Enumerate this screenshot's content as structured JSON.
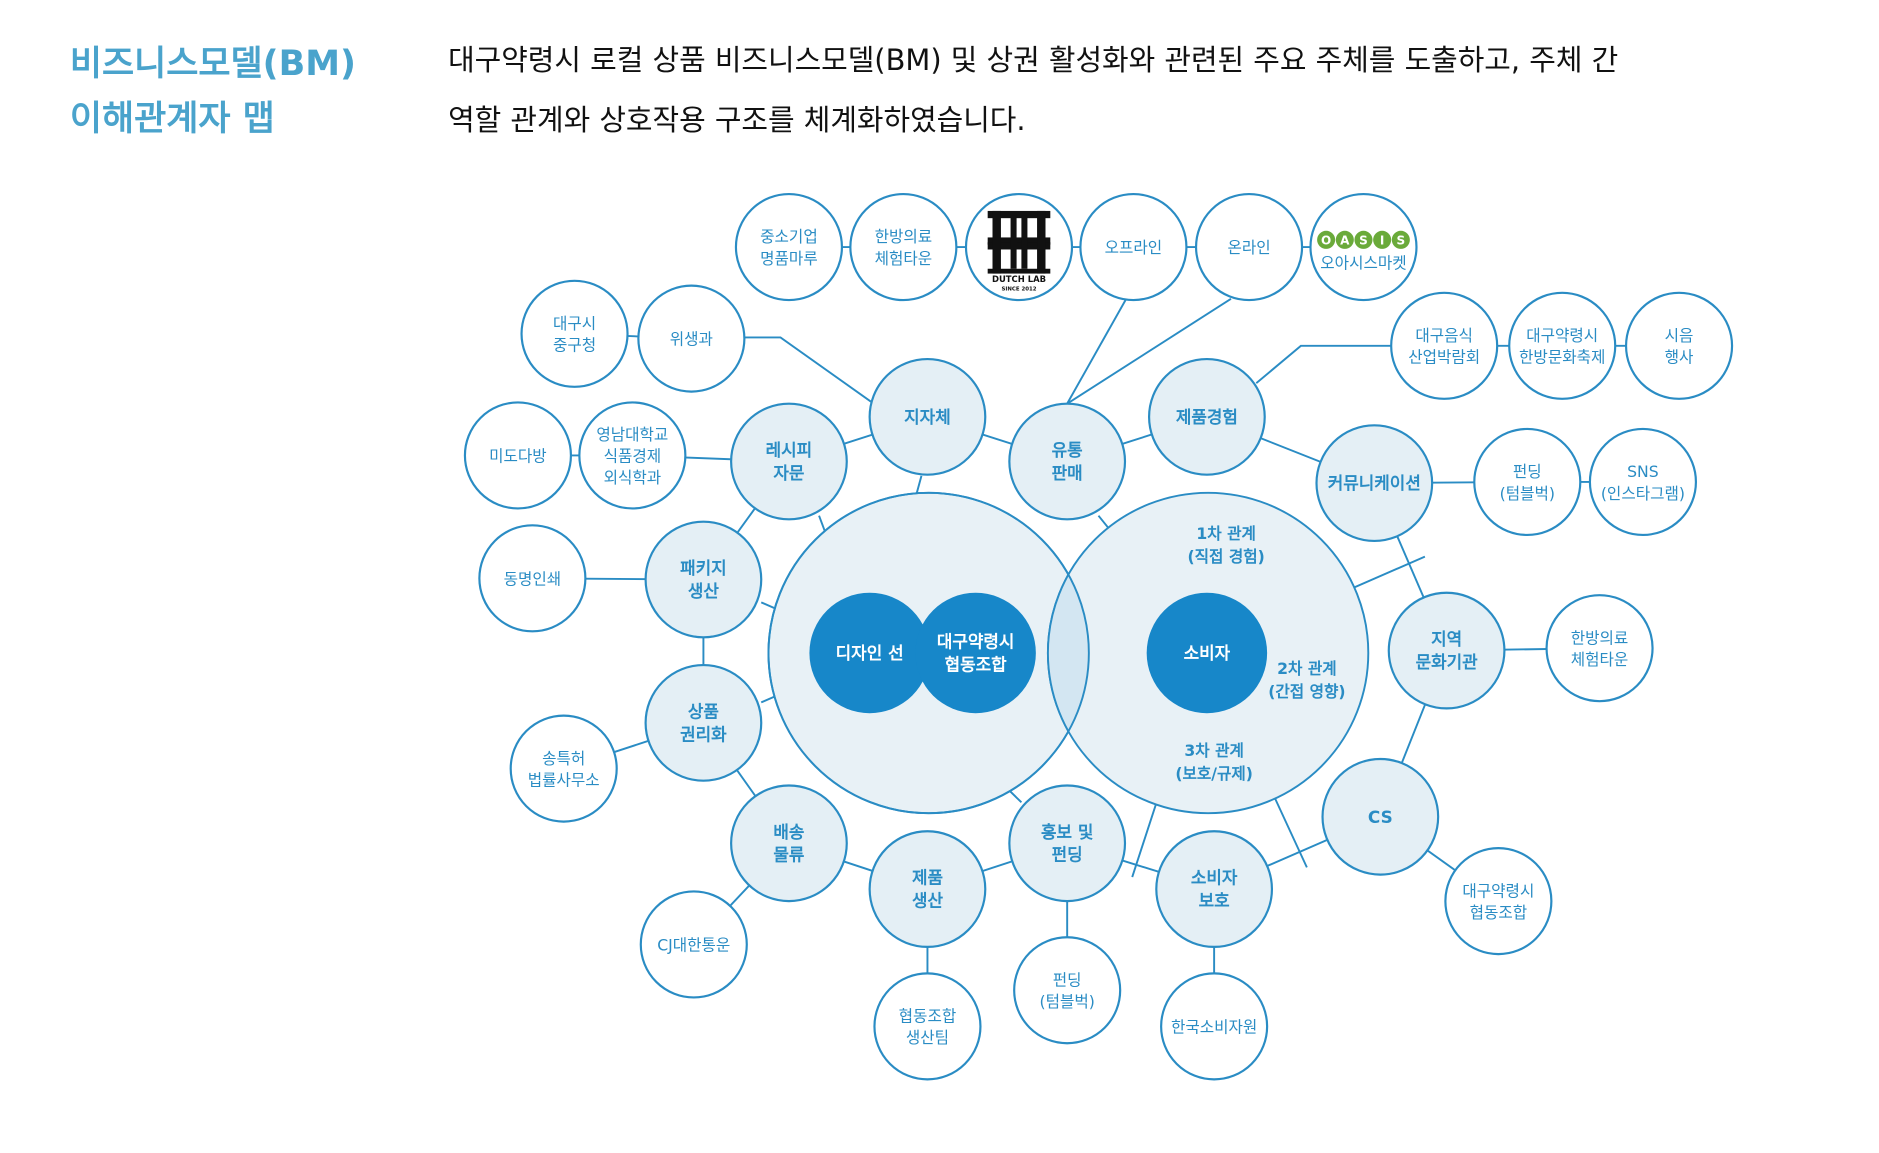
{
  "header": {
    "title_lines": [
      "비즈니스모델(BM)",
      "이해관계자 맵"
    ],
    "description_lines": [
      "대구약령시 로컬 상품 비즈니스모델(BM) 및 상권 활성화와 관련된 주요 주체를 도출하고, 주체 간",
      "역할 관계와 상호작용 구조를 체계화하였습니다."
    ]
  },
  "colors": {
    "title": "#4aa3cc",
    "stroke": "#2a8cc4",
    "core_fill": "#1787c9",
    "light_fill": "#e4eff5",
    "oasis_green": "#6aaa3a"
  },
  "diagram": {
    "core": [
      {
        "id": "design",
        "lines": [
          "디자인 선"
        ]
      },
      {
        "id": "coop",
        "lines": [
          "대구약령시",
          "협동조합"
        ]
      },
      {
        "id": "consumer",
        "lines": [
          "소비자"
        ]
      }
    ],
    "relations": [
      {
        "id": "rel1",
        "lines": [
          "1차 관계",
          "(직접 경험)"
        ]
      },
      {
        "id": "rel2",
        "lines": [
          "2차 관계",
          "(간접 영향)"
        ]
      },
      {
        "id": "rel3",
        "lines": [
          "3차 관계",
          "(보호/규제)"
        ]
      }
    ],
    "primary": [
      {
        "id": "gov",
        "lines": [
          "지자체"
        ]
      },
      {
        "id": "recipe",
        "lines": [
          "레시피",
          "자문"
        ]
      },
      {
        "id": "dist",
        "lines": [
          "유통",
          "판매"
        ]
      },
      {
        "id": "exp",
        "lines": [
          "제품경험"
        ]
      },
      {
        "id": "comm",
        "lines": [
          "커뮤니케이션"
        ]
      },
      {
        "id": "pkg",
        "lines": [
          "패키지",
          "생산"
        ]
      },
      {
        "id": "ip",
        "lines": [
          "상품",
          "권리화"
        ]
      },
      {
        "id": "culture",
        "lines": [
          "지역",
          "문화기관"
        ]
      },
      {
        "id": "cs",
        "lines": [
          "CS"
        ]
      },
      {
        "id": "ship",
        "lines": [
          "배송",
          "물류"
        ]
      },
      {
        "id": "prod",
        "lines": [
          "제품",
          "생산"
        ]
      },
      {
        "id": "promo",
        "lines": [
          "홍보 및",
          "펀딩"
        ]
      },
      {
        "id": "protect",
        "lines": [
          "소비자",
          "보호"
        ]
      }
    ],
    "secondary": [
      {
        "id": "sme",
        "lines": [
          "중소기업",
          "명품마루"
        ]
      },
      {
        "id": "herbtown1",
        "lines": [
          "한방의료",
          "체험타운"
        ]
      },
      {
        "id": "dutch",
        "lines": [
          "DUTCH LAB",
          "SINCE 2012"
        ],
        "logo": true
      },
      {
        "id": "offline",
        "lines": [
          "오프라인"
        ]
      },
      {
        "id": "online",
        "lines": [
          "온라인"
        ]
      },
      {
        "id": "oasis",
        "lines": [
          "OASIS",
          "오아시스마켓"
        ],
        "logo": true
      },
      {
        "id": "junggu",
        "lines": [
          "대구시",
          "중구청"
        ]
      },
      {
        "id": "hygiene",
        "lines": [
          "위생과"
        ]
      },
      {
        "id": "mido",
        "lines": [
          "미도다방"
        ]
      },
      {
        "id": "yeungnam",
        "lines": [
          "영남대학교",
          "식품경제",
          "외식학과"
        ]
      },
      {
        "id": "dongmyeong",
        "lines": [
          "동명인쇄"
        ]
      },
      {
        "id": "patent",
        "lines": [
          "송특허",
          "법률사무소"
        ]
      },
      {
        "id": "cj",
        "lines": [
          "CJ대한통운"
        ]
      },
      {
        "id": "prodteam",
        "lines": [
          "협동조합",
          "생산팀"
        ]
      },
      {
        "id": "funding1",
        "lines": [
          "펀딩",
          "(텀블벅)"
        ]
      },
      {
        "id": "kca",
        "lines": [
          "한국소비자원"
        ]
      },
      {
        "id": "coop2",
        "lines": [
          "대구약령시",
          "협동조합"
        ]
      },
      {
        "id": "herbtown2",
        "lines": [
          "한방의료",
          "체험타운"
        ]
      },
      {
        "id": "funding2",
        "lines": [
          "펀딩",
          "(텀블벅)"
        ]
      },
      {
        "id": "sns",
        "lines": [
          "SNS",
          "(인스타그램)"
        ]
      },
      {
        "id": "expo",
        "lines": [
          "대구음식",
          "산업박람회"
        ]
      },
      {
        "id": "festival",
        "lines": [
          "대구약령시",
          "한방문화축제"
        ]
      },
      {
        "id": "tasting",
        "lines": [
          "시음",
          "행사"
        ]
      }
    ]
  }
}
